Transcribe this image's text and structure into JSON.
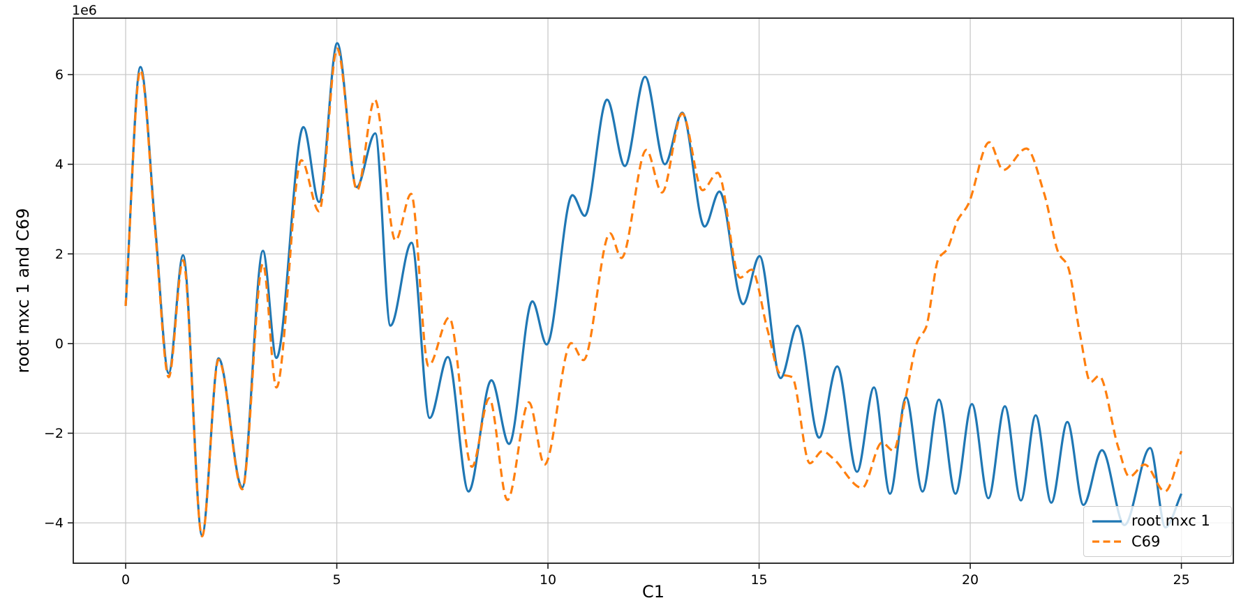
{
  "figure": {
    "background": "#ffffff",
    "spine_color": "#1a1a1a",
    "grid_color": "#c9c9c9"
  },
  "chart_data": {
    "type": "line",
    "title": "",
    "xlabel": "C1",
    "ylabel": "root mxc 1 and C69",
    "y_offset_text": "1e6",
    "xlim": [
      -1.24,
      26.23
    ],
    "ylim_e6": [
      -4.9,
      7.26
    ],
    "x_ticks": [
      0,
      5,
      10,
      15,
      20,
      25
    ],
    "y_ticks_e6": [
      -4,
      -2,
      0,
      2,
      4,
      6
    ],
    "grid": true,
    "legend_position": "lower right",
    "series": [
      {
        "name": "root mxc 1",
        "color": "#1f77b4",
        "style": "solid",
        "points_e6": [
          [
            0,
            0.84
          ],
          [
            0.35,
            6.17
          ],
          [
            0.7,
            2.6
          ],
          [
            1.02,
            -0.66
          ],
          [
            1.36,
            1.97
          ],
          [
            1.81,
            -4.28
          ],
          [
            2.2,
            -0.33
          ],
          [
            2.76,
            -3.21
          ],
          [
            3.25,
            2.07
          ],
          [
            3.57,
            -0.32
          ],
          [
            4.21,
            4.83
          ],
          [
            4.58,
            3.16
          ],
          [
            5.01,
            6.7
          ],
          [
            5.47,
            3.49
          ],
          [
            5.91,
            4.69
          ],
          [
            6.27,
            0.4
          ],
          [
            6.77,
            2.25
          ],
          [
            7.2,
            -1.66
          ],
          [
            7.63,
            -0.3
          ],
          [
            8.12,
            -3.3
          ],
          [
            8.66,
            -0.82
          ],
          [
            9.08,
            -2.24
          ],
          [
            9.63,
            0.94
          ],
          [
            9.97,
            -0.02
          ],
          [
            10.58,
            3.31
          ],
          [
            10.87,
            2.85
          ],
          [
            11.4,
            5.44
          ],
          [
            11.82,
            3.96
          ],
          [
            12.3,
            5.95
          ],
          [
            12.77,
            4.0
          ],
          [
            13.18,
            5.15
          ],
          [
            13.71,
            2.61
          ],
          [
            14.06,
            3.39
          ],
          [
            14.62,
            0.88
          ],
          [
            15.01,
            1.95
          ],
          [
            15.51,
            -0.77
          ],
          [
            15.91,
            0.4
          ],
          [
            16.42,
            -2.1
          ],
          [
            16.85,
            -0.51
          ],
          [
            17.32,
            -2.86
          ],
          [
            17.72,
            -0.98
          ],
          [
            18.1,
            -3.35
          ],
          [
            18.48,
            -1.2
          ],
          [
            18.87,
            -3.3
          ],
          [
            19.26,
            -1.25
          ],
          [
            19.65,
            -3.35
          ],
          [
            20.04,
            -1.35
          ],
          [
            20.43,
            -3.45
          ],
          [
            20.82,
            -1.4
          ],
          [
            21.2,
            -3.5
          ],
          [
            21.55,
            -1.6
          ],
          [
            21.92,
            -3.55
          ],
          [
            22.3,
            -1.75
          ],
          [
            22.68,
            -3.6
          ],
          [
            23.12,
            -2.38
          ],
          [
            23.65,
            -4.05
          ],
          [
            24.26,
            -2.33
          ],
          [
            24.62,
            -4.1
          ],
          [
            25,
            -3.35
          ]
        ]
      },
      {
        "name": "C69",
        "color": "#ff7f0e",
        "style": "dashed",
        "points_e6": [
          [
            0,
            0.84
          ],
          [
            0.35,
            6.1
          ],
          [
            0.7,
            2.5
          ],
          [
            1.02,
            -0.75
          ],
          [
            1.36,
            1.86
          ],
          [
            1.81,
            -4.3
          ],
          [
            2.2,
            -0.36
          ],
          [
            2.76,
            -3.25
          ],
          [
            3.25,
            1.78
          ],
          [
            3.57,
            -0.98
          ],
          [
            4.16,
            4.09
          ],
          [
            4.58,
            2.95
          ],
          [
            5.01,
            6.58
          ],
          [
            5.48,
            3.42
          ],
          [
            5.9,
            5.44
          ],
          [
            6.39,
            2.3
          ],
          [
            6.76,
            3.34
          ],
          [
            7.17,
            -0.5
          ],
          [
            7.66,
            0.58
          ],
          [
            8.2,
            -2.75
          ],
          [
            8.61,
            -1.22
          ],
          [
            9.04,
            -3.49
          ],
          [
            9.55,
            -1.31
          ],
          [
            9.92,
            -2.7
          ],
          [
            10.55,
            0.01
          ],
          [
            10.84,
            -0.37
          ],
          [
            11.47,
            2.46
          ],
          [
            11.74,
            1.91
          ],
          [
            12.33,
            4.32
          ],
          [
            12.7,
            3.37
          ],
          [
            13.18,
            5.13
          ],
          [
            13.66,
            3.42
          ],
          [
            14.02,
            3.81
          ],
          [
            14.55,
            1.47
          ],
          [
            14.82,
            1.65
          ],
          [
            15.2,
            0.3
          ],
          [
            15.5,
            -0.68
          ],
          [
            15.78,
            -0.75
          ],
          [
            16.2,
            -2.67
          ],
          [
            16.5,
            -2.4
          ],
          [
            16.75,
            -2.56
          ],
          [
            17.44,
            -3.22
          ],
          [
            17.91,
            -2.21
          ],
          [
            18.18,
            -2.39
          ],
          [
            18.45,
            -1.3
          ],
          [
            18.75,
            0.05
          ],
          [
            18.95,
            0.35
          ],
          [
            19.25,
            1.9
          ],
          [
            19.45,
            2.1
          ],
          [
            19.7,
            2.75
          ],
          [
            19.95,
            3.1
          ],
          [
            20.45,
            4.49
          ],
          [
            20.78,
            3.87
          ],
          [
            21.33,
            4.35
          ],
          [
            21.75,
            3.35
          ],
          [
            22.1,
            2.0
          ],
          [
            22.3,
            1.75
          ],
          [
            22.6,
            0.2
          ],
          [
            22.85,
            -0.86
          ],
          [
            23.05,
            -0.72
          ],
          [
            23.5,
            -2.3
          ],
          [
            23.77,
            -2.97
          ],
          [
            24.13,
            -2.7
          ],
          [
            24.61,
            -3.3
          ],
          [
            25,
            -2.4
          ]
        ]
      }
    ]
  }
}
